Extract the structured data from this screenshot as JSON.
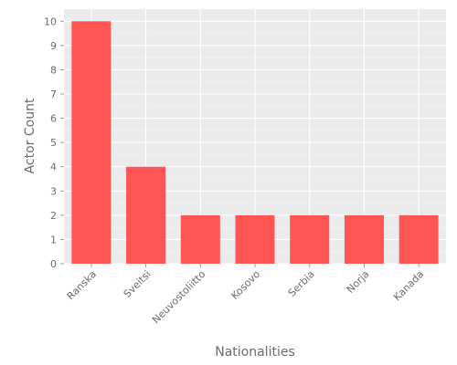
{
  "chart_data": {
    "type": "bar",
    "title": "",
    "xlabel": "Nationalities",
    "ylabel": "Actor Count",
    "categories": [
      "Ranska",
      "Sveitsi",
      "Neuvostoliitto",
      "Kosovo",
      "Serbia",
      "Norja",
      "Kanada"
    ],
    "values": [
      10,
      4,
      2,
      2,
      2,
      2,
      2
    ],
    "ylim": [
      0,
      10.5
    ],
    "yticks": [
      0,
      1,
      2,
      3,
      4,
      5,
      6,
      7,
      8,
      9,
      10
    ],
    "grid": true,
    "legend": "none",
    "colors": {
      "bar": "#ff5555",
      "panel": "#ebebeb",
      "grid": "#ffffff",
      "text": "#6b6b6b"
    }
  }
}
